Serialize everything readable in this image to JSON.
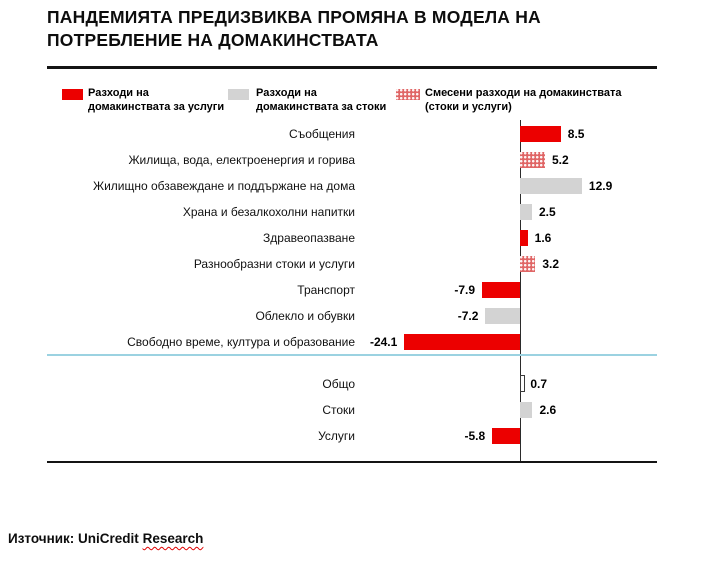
{
  "title": "ПАНДЕМИЯТА ПРЕДИЗВИКВА ПРОМЯНА В МОДЕЛА НА ПОТРЕБЛЕНИЕ НА ДОМАКИНСТВАТА",
  "legend": {
    "services": {
      "line1": "Разходи на",
      "line2": "домакинствата за услуги"
    },
    "goods": {
      "line1": "Разходи на",
      "line2": "домакинствата за стоки"
    },
    "mixed": {
      "line1": "Смесени разходи на домакинствата",
      "line2": "(стоки и услуги)"
    }
  },
  "colors": {
    "services": "#ec0000",
    "goods": "#d3d3d3",
    "mixed": "#e06666",
    "separator": "#9bd2e1"
  },
  "chart_data": {
    "type": "bar",
    "orientation": "horizontal",
    "legend_position": "top",
    "zero_axis_line": true,
    "rows": [
      {
        "label": "Съобщения",
        "value": 8.5,
        "category": "services",
        "section": "main"
      },
      {
        "label": "Жилища, вода, електроенергия и горива",
        "value": 5.2,
        "category": "mixed",
        "section": "main"
      },
      {
        "label": "Жилищно обзавеждане и поддържане на дома",
        "value": 12.9,
        "category": "goods",
        "section": "main"
      },
      {
        "label": "Храна и безалкохолни напитки",
        "value": 2.5,
        "category": "goods",
        "section": "main"
      },
      {
        "label": "Здравеопазване",
        "value": 1.6,
        "category": "services",
        "section": "main"
      },
      {
        "label": "Разнообразни стоки и услуги",
        "value": 3.2,
        "category": "mixed",
        "section": "main"
      },
      {
        "label": "Транспорт",
        "value": -7.9,
        "category": "services",
        "section": "main"
      },
      {
        "label": "Облекло и обувки",
        "value": -7.2,
        "category": "goods",
        "section": "main"
      },
      {
        "label": "Свободно време, култура и образование",
        "value": -24.1,
        "category": "services",
        "section": "main"
      },
      {
        "label": "Общо",
        "value": 0.7,
        "category": "total",
        "section": "totals"
      },
      {
        "label": "Стоки",
        "value": 2.6,
        "category": "goods",
        "section": "totals"
      },
      {
        "label": "Услуги",
        "value": -5.8,
        "category": "services",
        "section": "totals"
      }
    ]
  },
  "source": {
    "text": "Източник: UniCredit",
    "underlined_text": "Research"
  }
}
